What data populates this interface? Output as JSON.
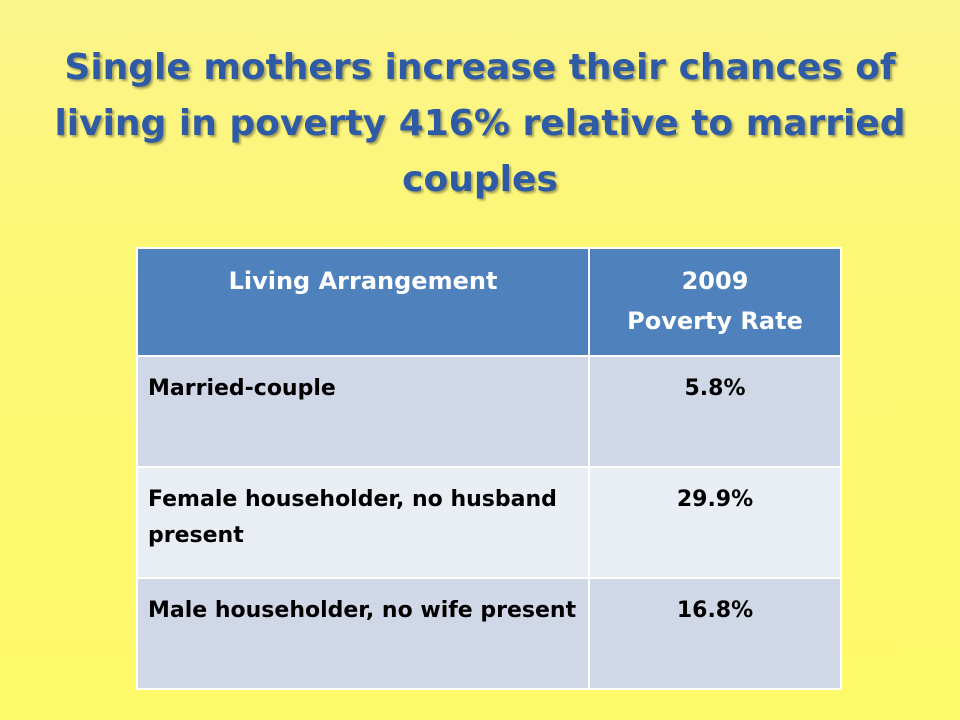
{
  "slide": {
    "title": "Single mothers increase their chances of living in poverty 416% relative to married couples"
  },
  "table": {
    "headers": {
      "arrangement": "Living Arrangement",
      "rate_line1": "2009",
      "rate_line2": "Poverty Rate"
    },
    "rows": [
      {
        "arrangement": "Married-couple",
        "rate": "5.8%"
      },
      {
        "arrangement": "Female householder, no husband present",
        "rate": "29.9%"
      },
      {
        "arrangement": "Male householder, no wife present",
        "rate": "16.8%"
      }
    ]
  },
  "colors": {
    "title": "#2e5aa6",
    "header_fill": "#4f81bd",
    "row_odd": "#d0d8e8",
    "row_even": "#e9edf4",
    "background_top": "#fbf48a",
    "background_bottom": "#fef967"
  }
}
